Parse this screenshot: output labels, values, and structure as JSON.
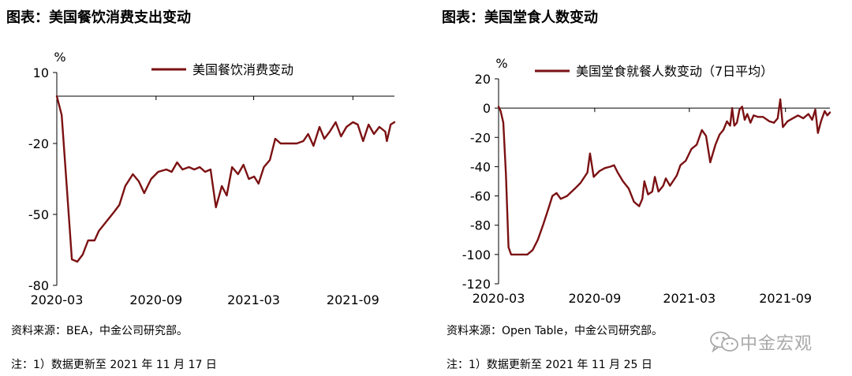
{
  "left": {
    "title": "图表：美国餐饮消费支出变动",
    "source": "资料来源：BEA，中金公司研究部。",
    "note": "注：1）数据更新至 2021 年 11 月 17 日"
  },
  "right": {
    "title": "图表：美国堂食人数变动",
    "source": "资料来源：Open Table，中金公司研究部。",
    "note": "注：1）数据更新至 2021 年 11 月 25 日"
  },
  "watermark": {
    "text": "中金宏观",
    "icon": "wechat-icon"
  },
  "colors": {
    "series": "#7b1113",
    "axis": "#000000",
    "watermark": "#a9a9a9"
  },
  "chart_data": [
    {
      "type": "line",
      "title": "图表：美国餐饮消费支出变动",
      "ylabel": "%",
      "xlabel": "",
      "x_type": "date",
      "xlim": [
        "2020-03-01",
        "2021-11-17"
      ],
      "ylim": [
        -80,
        10
      ],
      "yticks": [
        10,
        -20,
        -50,
        -80
      ],
      "xtick_labels": [
        "2020-03",
        "2020-09",
        "2021-03",
        "2021-09"
      ],
      "grid": false,
      "legend_position": "top-center",
      "series": [
        {
          "name": "美国餐饮消费变动",
          "color": "#7b1113",
          "points": [
            [
              "2020-03-01",
              0
            ],
            [
              "2020-03-10",
              -8
            ],
            [
              "2020-03-20",
              -40
            ],
            [
              "2020-03-29",
              -69
            ],
            [
              "2020-04-08",
              -70
            ],
            [
              "2020-04-18",
              -67
            ],
            [
              "2020-04-28",
              -61
            ],
            [
              "2020-05-10",
              -61
            ],
            [
              "2020-05-18",
              -57
            ],
            [
              "2020-06-01",
              -53
            ],
            [
              "2020-06-15",
              -49
            ],
            [
              "2020-06-25",
              -46
            ],
            [
              "2020-07-06",
              -38
            ],
            [
              "2020-07-20",
              -33
            ],
            [
              "2020-07-31",
              -36
            ],
            [
              "2020-08-10",
              -41
            ],
            [
              "2020-08-23",
              -35
            ],
            [
              "2020-09-05",
              -32
            ],
            [
              "2020-09-20",
              -31
            ],
            [
              "2020-09-30",
              -32
            ],
            [
              "2020-10-10",
              -28
            ],
            [
              "2020-10-20",
              -31
            ],
            [
              "2020-11-01",
              -30
            ],
            [
              "2020-11-11",
              -31
            ],
            [
              "2020-11-21",
              -30
            ],
            [
              "2020-12-01",
              -32
            ],
            [
              "2020-12-11",
              -31
            ],
            [
              "2020-12-21",
              -47
            ],
            [
              "2021-01-01",
              -38
            ],
            [
              "2021-01-10",
              -42
            ],
            [
              "2021-01-20",
              -30
            ],
            [
              "2021-01-31",
              -33
            ],
            [
              "2021-02-10",
              -29
            ],
            [
              "2021-02-20",
              -35
            ],
            [
              "2021-03-02",
              -34
            ],
            [
              "2021-03-10",
              -37
            ],
            [
              "2021-03-20",
              -30
            ],
            [
              "2021-03-31",
              -27
            ],
            [
              "2021-04-10",
              -18
            ],
            [
              "2021-04-20",
              -20
            ],
            [
              "2021-05-01",
              -20
            ],
            [
              "2021-05-20",
              -20
            ],
            [
              "2021-06-01",
              -19
            ],
            [
              "2021-06-10",
              -16
            ],
            [
              "2021-06-20",
              -21
            ],
            [
              "2021-07-01",
              -13
            ],
            [
              "2021-07-10",
              -18
            ],
            [
              "2021-07-20",
              -15
            ],
            [
              "2021-07-31",
              -11
            ],
            [
              "2021-08-10",
              -17
            ],
            [
              "2021-08-20",
              -13
            ],
            [
              "2021-09-01",
              -11
            ],
            [
              "2021-09-10",
              -12
            ],
            [
              "2021-09-20",
              -19
            ],
            [
              "2021-09-30",
              -12
            ],
            [
              "2021-10-10",
              -16
            ],
            [
              "2021-10-20",
              -13
            ],
            [
              "2021-10-31",
              -15
            ],
            [
              "2021-11-03",
              -19
            ],
            [
              "2021-11-10",
              -12
            ],
            [
              "2021-11-17",
              -11
            ]
          ]
        }
      ]
    },
    {
      "type": "line",
      "title": "图表：美国堂食人数变动",
      "ylabel": "%",
      "xlabel": "",
      "x_type": "date",
      "xlim": [
        "2020-03-01",
        "2021-11-25"
      ],
      "ylim": [
        -120,
        20
      ],
      "yticks": [
        20,
        0,
        -20,
        -40,
        -60,
        -80,
        -100,
        -120
      ],
      "xtick_labels": [
        "2020-03",
        "2020-09",
        "2021-03",
        "2021-09"
      ],
      "grid": false,
      "legend_position": "top-center",
      "series": [
        {
          "name": "美国堂食就餐人数变动（7日平均）",
          "color": "#7b1113",
          "points": [
            [
              "2020-03-01",
              1
            ],
            [
              "2020-03-05",
              -2
            ],
            [
              "2020-03-10",
              -10
            ],
            [
              "2020-03-15",
              -45
            ],
            [
              "2020-03-20",
              -95
            ],
            [
              "2020-03-25",
              -100
            ],
            [
              "2020-04-10",
              -100
            ],
            [
              "2020-04-25",
              -100
            ],
            [
              "2020-05-05",
              -97
            ],
            [
              "2020-05-15",
              -90
            ],
            [
              "2020-05-25",
              -80
            ],
            [
              "2020-06-05",
              -68
            ],
            [
              "2020-06-12",
              -60
            ],
            [
              "2020-06-20",
              -58
            ],
            [
              "2020-06-28",
              -62
            ],
            [
              "2020-07-10",
              -60
            ],
            [
              "2020-07-25",
              -55
            ],
            [
              "2020-08-05",
              -51
            ],
            [
              "2020-08-18",
              -44
            ],
            [
              "2020-08-23",
              -31
            ],
            [
              "2020-08-30",
              -47
            ],
            [
              "2020-09-10",
              -43
            ],
            [
              "2020-09-20",
              -41
            ],
            [
              "2020-10-01",
              -40
            ],
            [
              "2020-10-08",
              -39
            ],
            [
              "2020-10-15",
              -44
            ],
            [
              "2020-10-25",
              -50
            ],
            [
              "2020-11-05",
              -55
            ],
            [
              "2020-11-15",
              -64
            ],
            [
              "2020-11-25",
              -67
            ],
            [
              "2020-12-01",
              -62
            ],
            [
              "2020-12-05",
              -50
            ],
            [
              "2020-12-12",
              -59
            ],
            [
              "2020-12-20",
              -57
            ],
            [
              "2020-12-25",
              -47
            ],
            [
              "2021-01-01",
              -57
            ],
            [
              "2021-01-10",
              -53
            ],
            [
              "2021-01-15",
              -48
            ],
            [
              "2021-01-23",
              -53
            ],
            [
              "2021-02-05",
              -46
            ],
            [
              "2021-02-12",
              -39
            ],
            [
              "2021-02-22",
              -36
            ],
            [
              "2021-03-05",
              -28
            ],
            [
              "2021-03-15",
              -25
            ],
            [
              "2021-03-25",
              -15
            ],
            [
              "2021-04-02",
              -19
            ],
            [
              "2021-04-10",
              -37
            ],
            [
              "2021-04-20",
              -25
            ],
            [
              "2021-04-28",
              -18
            ],
            [
              "2021-05-05",
              -15
            ],
            [
              "2021-05-12",
              -9
            ],
            [
              "2021-05-18",
              -12
            ],
            [
              "2021-05-22",
              0
            ],
            [
              "2021-05-26",
              -12
            ],
            [
              "2021-05-31",
              -10
            ],
            [
              "2021-06-05",
              -1
            ],
            [
              "2021-06-10",
              1
            ],
            [
              "2021-06-15",
              -8
            ],
            [
              "2021-06-20",
              -4
            ],
            [
              "2021-06-26",
              -10
            ],
            [
              "2021-07-02",
              -5
            ],
            [
              "2021-07-10",
              -6
            ],
            [
              "2021-07-20",
              -6
            ],
            [
              "2021-08-01",
              -9
            ],
            [
              "2021-08-10",
              -10
            ],
            [
              "2021-08-17",
              -7
            ],
            [
              "2021-08-22",
              6
            ],
            [
              "2021-08-27",
              -13
            ],
            [
              "2021-09-05",
              -9
            ],
            [
              "2021-09-15",
              -7
            ],
            [
              "2021-09-25",
              -5
            ],
            [
              "2021-10-05",
              -7
            ],
            [
              "2021-10-15",
              -4
            ],
            [
              "2021-10-22",
              -8
            ],
            [
              "2021-10-28",
              -1
            ],
            [
              "2021-11-02",
              -17
            ],
            [
              "2021-11-08",
              -9
            ],
            [
              "2021-11-15",
              -2
            ],
            [
              "2021-11-20",
              -5
            ],
            [
              "2021-11-25",
              -3
            ]
          ]
        }
      ]
    }
  ]
}
